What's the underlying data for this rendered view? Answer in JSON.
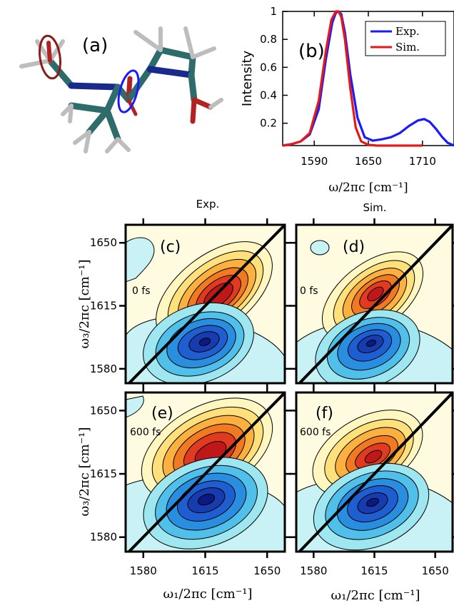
{
  "colors": {
    "exp_line": "#1a1aff",
    "sim_line": "#e61919",
    "molecule_carbon": "#2e6b6b",
    "molecule_hydrogen": "#bdbdbd",
    "molecule_nitrogen": "#1a2a8c",
    "molecule_oxygen": "#b22222",
    "highlight_a": "#8b1a1a",
    "highlight_b": "#1a1aff",
    "panel_bg": "#fffbe0",
    "negative_bg": "#c8f2f5"
  },
  "panel_a": {
    "label": "(a)"
  },
  "panel_b": {
    "label": "(b)",
    "legend": [
      "Exp.",
      "Sim."
    ]
  },
  "column_titles": [
    "Exp.",
    "Sim."
  ],
  "panels_2d": [
    {
      "id": "c",
      "label": "(c)",
      "time": "0 fs",
      "source": "experiment"
    },
    {
      "id": "d",
      "label": "(d)",
      "time": "0 fs",
      "source": "simulation"
    },
    {
      "id": "e",
      "label": "(e)",
      "time": "600 fs",
      "source": "experiment"
    },
    {
      "id": "f",
      "label": "(f)",
      "time": "600 fs",
      "source": "simulation"
    }
  ],
  "axis_labels": {
    "b_x": "ω/2πc [cm⁻¹]",
    "b_y": "Intensity",
    "w3": "ω₃/2πc [cm⁻¹]",
    "w1": "ω₁/2πc [cm⁻¹]"
  },
  "chart_data": [
    {
      "type": "line",
      "panel": "b",
      "xlabel": "ω/2πc [cm⁻¹]",
      "ylabel": "Intensity",
      "xlim": [
        1555,
        1745
      ],
      "ylim": [
        0.04,
        1.0
      ],
      "xticks": [
        1590,
        1650,
        1710
      ],
      "yticks": [
        0.2,
        0.4,
        0.6,
        0.8,
        1
      ],
      "legend_position": "top-right",
      "series": [
        {
          "name": "Exp.",
          "color": "#1a1aff",
          "x": [
            1555,
            1565,
            1575,
            1585,
            1595,
            1603,
            1610,
            1614,
            1617,
            1620,
            1624,
            1630,
            1638,
            1646,
            1655,
            1665,
            1675,
            1685,
            1695,
            1705,
            1712,
            1718,
            1725,
            1732,
            1738,
            1745
          ],
          "y": [
            0.04,
            0.05,
            0.07,
            0.12,
            0.3,
            0.66,
            0.92,
            0.99,
            1.0,
            0.98,
            0.85,
            0.55,
            0.24,
            0.1,
            0.075,
            0.085,
            0.1,
            0.13,
            0.18,
            0.22,
            0.23,
            0.21,
            0.16,
            0.1,
            0.06,
            0.04
          ]
        },
        {
          "name": "Sim.",
          "color": "#e61919",
          "x": [
            1555,
            1565,
            1575,
            1585,
            1595,
            1603,
            1609,
            1614,
            1617,
            1620,
            1624,
            1630,
            1636,
            1642,
            1650,
            1660,
            1672,
            1690,
            1710
          ],
          "y": [
            0.04,
            0.05,
            0.07,
            0.13,
            0.36,
            0.72,
            0.94,
            1.0,
            1.0,
            0.96,
            0.8,
            0.45,
            0.17,
            0.07,
            0.045,
            0.04,
            0.04,
            0.04,
            0.04
          ]
        }
      ]
    },
    {
      "type": "contour",
      "panels": [
        "c",
        "d",
        "e",
        "f"
      ],
      "xlabel": "ω₁/2πc [cm⁻¹]",
      "ylabel": "ω₃/2πc [cm⁻¹]",
      "xlim": [
        1570,
        1660
      ],
      "ylim": [
        1572,
        1660
      ],
      "xticks": [
        1580,
        1615,
        1650
      ],
      "yticks": [
        1580,
        1615,
        1650
      ],
      "diagonal": true,
      "positive_peak_color": "#d42020",
      "negative_peak_color": "#1e64d2"
    }
  ]
}
